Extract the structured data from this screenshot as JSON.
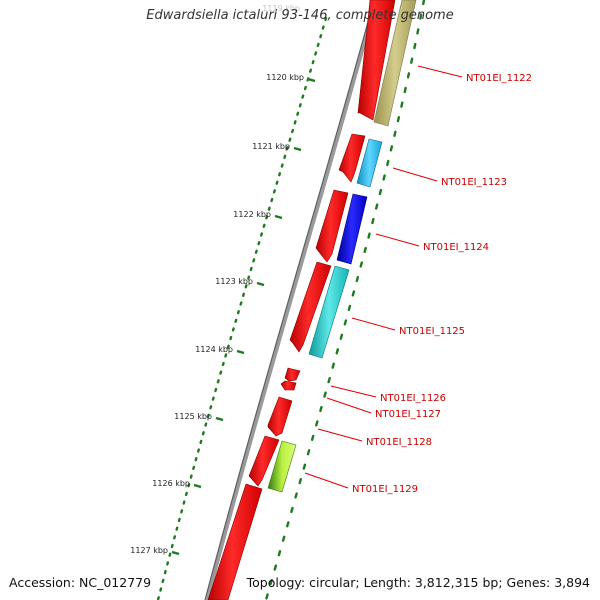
{
  "title": "Edwardsiella ictaluri 93-146, complete genome",
  "footer": {
    "accession": "Accession: NC_012779",
    "topology": "Topology: circular; Length: 3,812,315 bp; Genes: 3,894"
  },
  "colors": {
    "backbone": "#8c8c8c",
    "tick": "#1e7a1e",
    "label_line": "#e00000",
    "label_text": "#cc0000",
    "forward_cds": "#ff1a1a"
  },
  "scale_labels": [
    {
      "text": "1119 kbp",
      "faded": true
    },
    {
      "text": "1120 kbp"
    },
    {
      "text": "1121 kbp"
    },
    {
      "text": "1122 kbp"
    },
    {
      "text": "1123 kbp"
    },
    {
      "text": "1124 kbp"
    },
    {
      "text": "1125 kbp"
    },
    {
      "text": "1126 kbp"
    },
    {
      "text": "1127 kbp"
    }
  ],
  "genes": [
    {
      "label": "NT01EI_1122",
      "color": "#bdb76b"
    },
    {
      "label": "NT01EI_1123",
      "color": "#1fb8e8"
    },
    {
      "label": "NT01EI_1124",
      "color": "#1010d0"
    },
    {
      "label": "NT01EI_1125",
      "color": "#1bc6c6"
    },
    {
      "label": "NT01EI_1126",
      "color": "#ff1a1a"
    },
    {
      "label": "NT01EI_1127",
      "color": "#ff1a1a"
    },
    {
      "label": "NT01EI_1128",
      "color": "#ff1a1a"
    },
    {
      "label": "NT01EI_1129",
      "color": "#7acc1c"
    }
  ]
}
